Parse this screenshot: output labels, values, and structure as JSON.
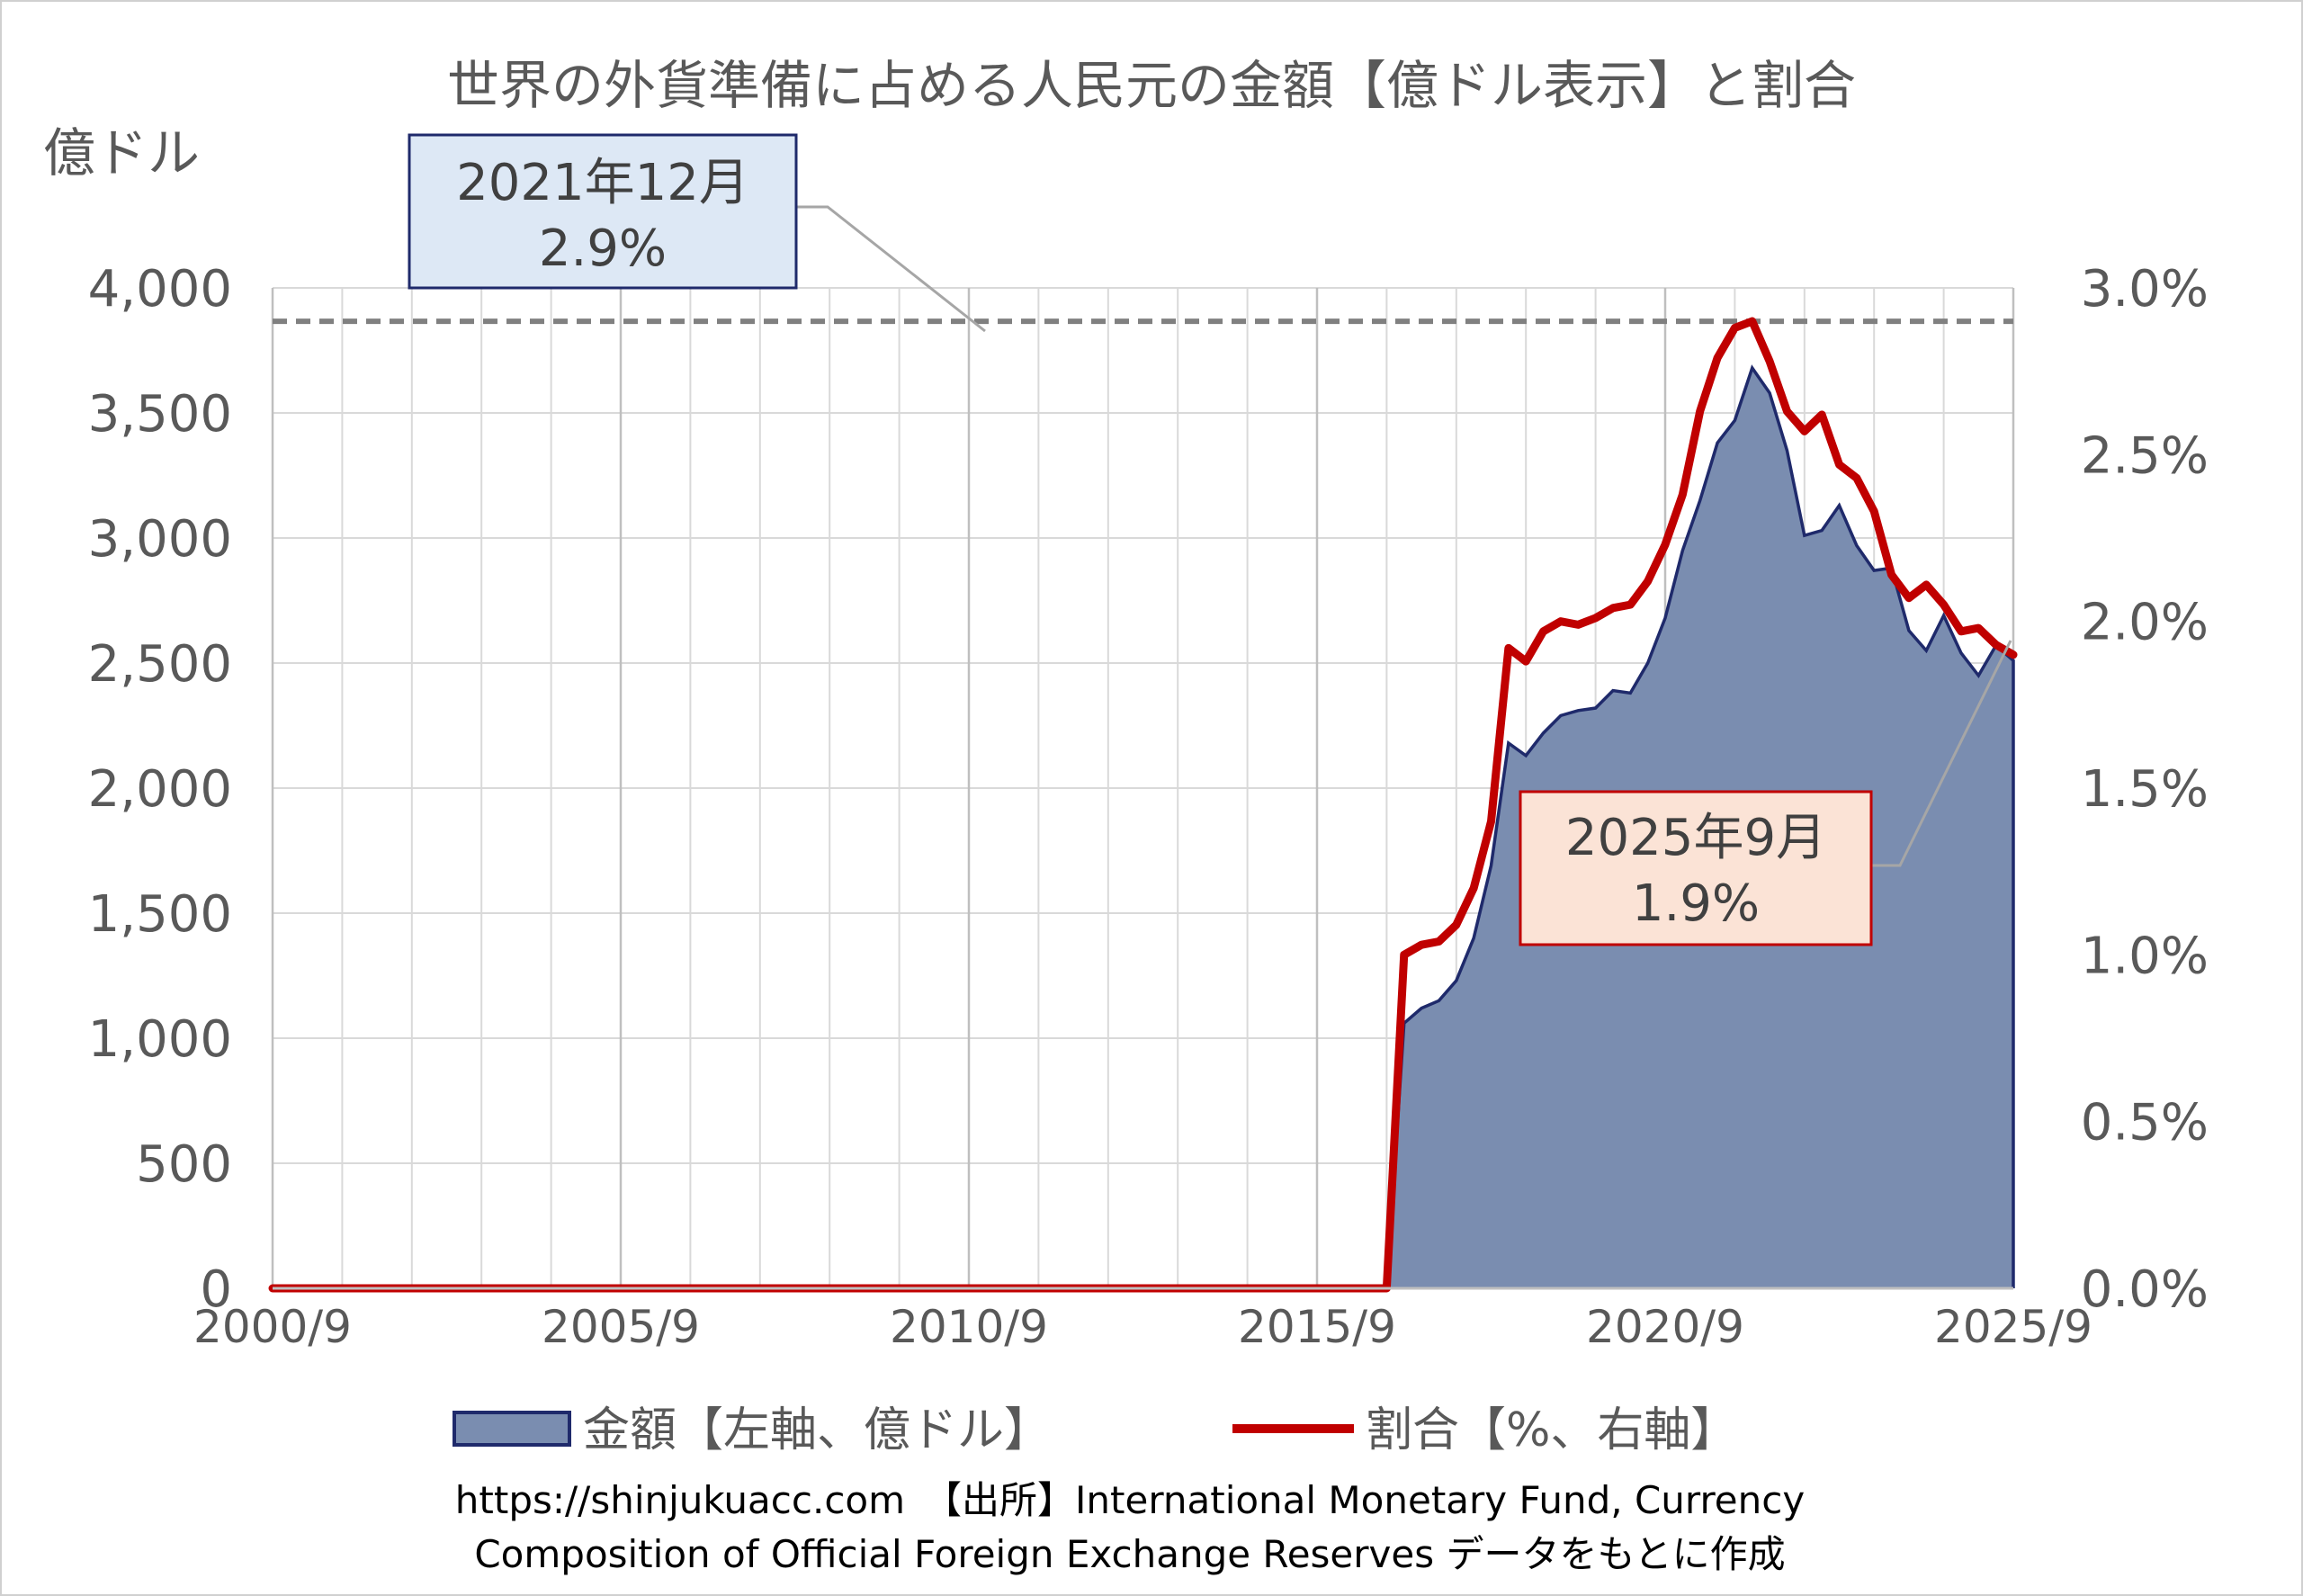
{
  "chart_data": {
    "type": "area",
    "title": "世界の外貨準備に占める人民元の金額【億ドル表示】と割合",
    "left_axis_unit": "億ドル",
    "y_left_ticks": [
      "0",
      "500",
      "1,000",
      "1,500",
      "2,000",
      "2,500",
      "3,000",
      "3,500",
      "4,000"
    ],
    "y_right_ticks": [
      "0.0%",
      "0.5%",
      "1.0%",
      "1.5%",
      "2.0%",
      "2.5%",
      "3.0%"
    ],
    "x_ticks": [
      "2000/9",
      "2005/9",
      "2010/9",
      "2015/9",
      "2020/9",
      "2025/9"
    ],
    "ylim_left": [
      0,
      4000
    ],
    "ylim_right": [
      0,
      3.0
    ],
    "grid": true,
    "legend_placement": "bottom",
    "series": [
      {
        "name": "金額【左軸、億ドル】",
        "type": "area",
        "axis": "left",
        "color": "#7a8db0",
        "line_color": "#1f2a6b",
        "x": [
          "2000/9",
          "2016/9",
          "2016/12",
          "2017/3",
          "2017/6",
          "2017/9",
          "2017/12",
          "2018/3",
          "2018/6",
          "2018/9",
          "2018/12",
          "2019/3",
          "2019/6",
          "2019/9",
          "2019/12",
          "2020/3",
          "2020/6",
          "2020/9",
          "2020/12",
          "2021/3",
          "2021/6",
          "2021/9",
          "2021/12",
          "2022/3",
          "2022/6",
          "2022/9",
          "2022/12",
          "2023/3",
          "2023/6",
          "2023/9",
          "2023/12",
          "2024/3",
          "2024/6",
          "2024/9",
          "2024/12",
          "2025/3",
          "2025/6",
          "2025/9"
        ],
        "values": [
          0,
          0,
          1060,
          1120,
          1150,
          1230,
          1400,
          1690,
          2180,
          2130,
          2220,
          2290,
          2310,
          2320,
          2390,
          2380,
          2500,
          2680,
          2950,
          3150,
          3380,
          3470,
          3680,
          3580,
          3350,
          3010,
          3030,
          3130,
          2970,
          2870,
          2880,
          2630,
          2550,
          2690,
          2540,
          2450,
          2570,
          2510
        ]
      },
      {
        "name": "割合【%、右軸】",
        "type": "line",
        "axis": "right",
        "color": "#c00000",
        "x": [
          "2000/9",
          "2016/9",
          "2016/12",
          "2017/3",
          "2017/6",
          "2017/9",
          "2017/12",
          "2018/3",
          "2018/6",
          "2018/9",
          "2018/12",
          "2019/3",
          "2019/6",
          "2019/9",
          "2019/12",
          "2020/3",
          "2020/6",
          "2020/9",
          "2020/12",
          "2021/3",
          "2021/6",
          "2021/9",
          "2021/12",
          "2022/3",
          "2022/6",
          "2022/9",
          "2022/12",
          "2023/3",
          "2023/6",
          "2023/9",
          "2023/12",
          "2024/3",
          "2024/6",
          "2024/9",
          "2024/12",
          "2025/3",
          "2025/6",
          "2025/9"
        ],
        "values": [
          0,
          0,
          1.0,
          1.03,
          1.04,
          1.09,
          1.2,
          1.4,
          1.92,
          1.88,
          1.97,
          2.0,
          1.99,
          2.01,
          2.04,
          2.05,
          2.12,
          2.23,
          2.38,
          2.63,
          2.79,
          2.88,
          2.9,
          2.78,
          2.63,
          2.57,
          2.62,
          2.47,
          2.43,
          2.33,
          2.14,
          2.07,
          2.11,
          2.05,
          1.97,
          1.98,
          1.93,
          1.9
        ]
      }
    ],
    "reference_line": {
      "value": 2.9,
      "axis": "right",
      "color": "#808080"
    },
    "annotations": [
      {
        "id": "peak",
        "line1": "2021年12月",
        "line2": "2.9%",
        "fill": "#dde8f5",
        "border": "#1f2a6b"
      },
      {
        "id": "latest",
        "line1": "2025年9月",
        "line2": "1.9%",
        "fill": "#fbe3d6",
        "border": "#c00000"
      }
    ]
  },
  "source": {
    "line1": "https://shinjukuacc.com　【出所】International Monetary Fund, Currency",
    "line2": "Composition of Official Foreign Exchange Reserves データをもとに作成"
  }
}
